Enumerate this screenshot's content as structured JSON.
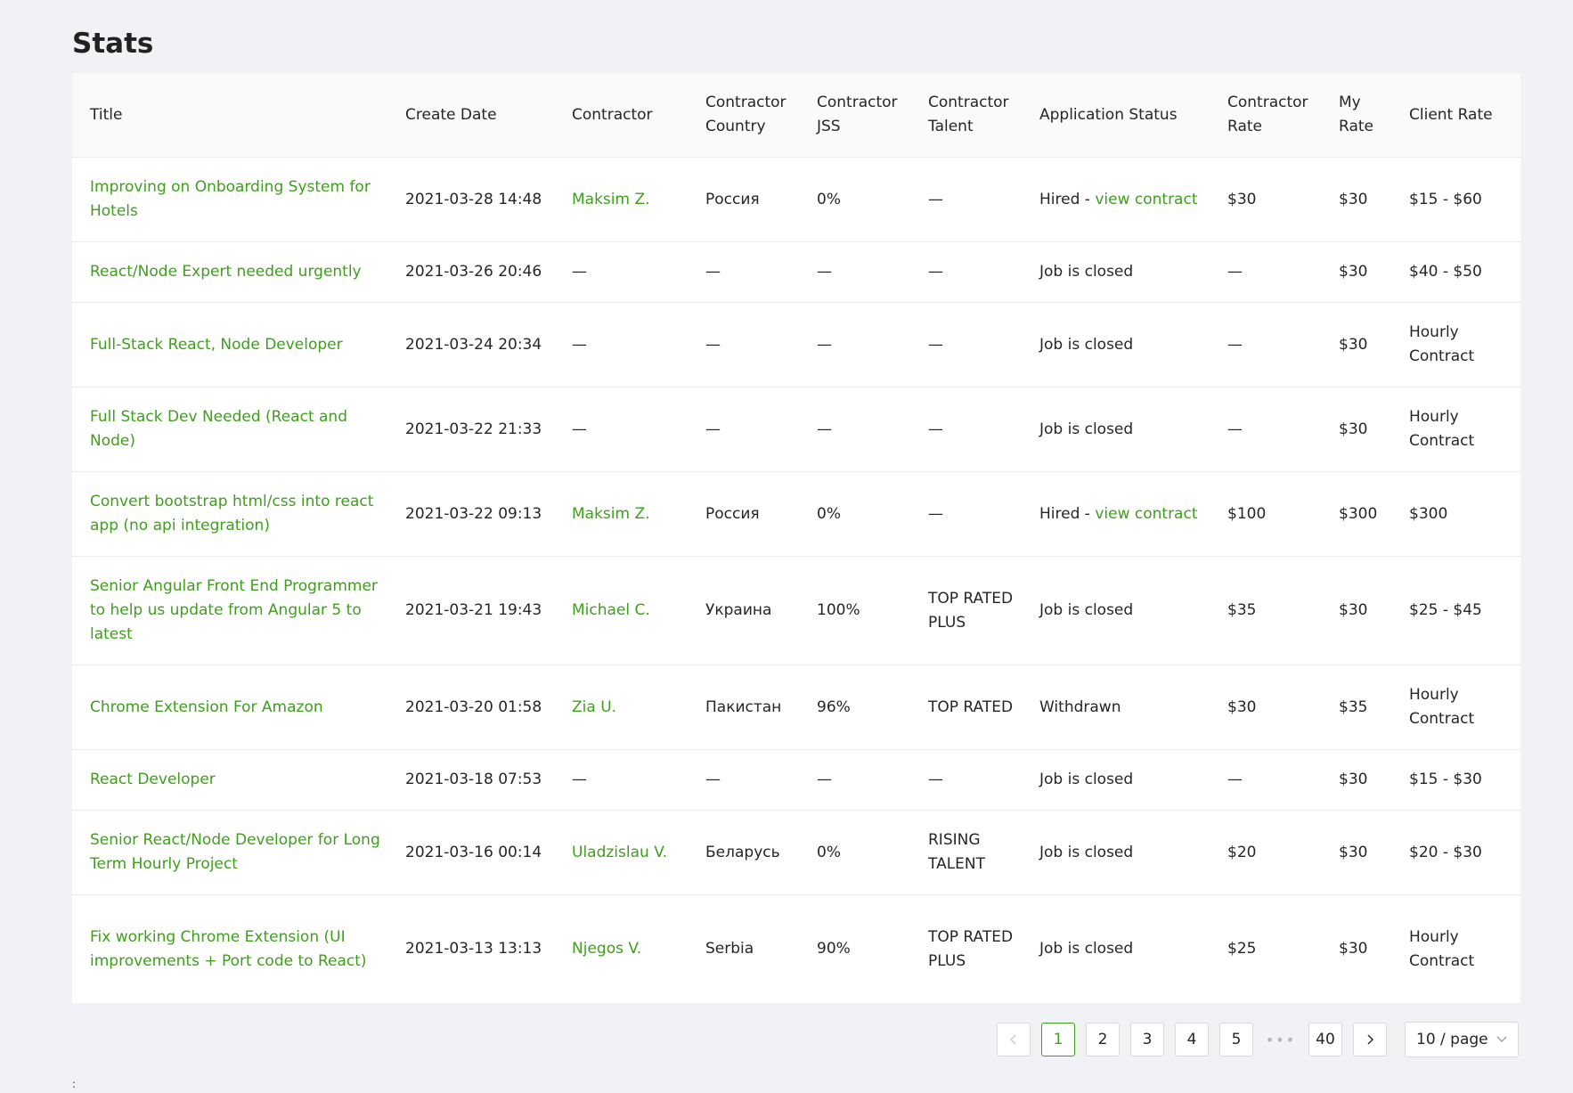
{
  "page": {
    "title": "Stats"
  },
  "table": {
    "columns": [
      "Title",
      "Create Date",
      "Contractor",
      "Contractor Country",
      "Contractor JSS",
      "Contractor Talent",
      "Application Status",
      "Contractor Rate",
      "My Rate",
      "Client Rate"
    ],
    "rows": [
      {
        "title": "Improving on Onboarding System for Hotels",
        "date": "2021-03-28 14:48",
        "contractor": "Maksim Z.",
        "country": "Россия",
        "jss": "0%",
        "talent": "—",
        "status": "Hired",
        "status_link": "view contract",
        "contractor_rate": "$30",
        "my_rate": "$30",
        "client_rate": "$15 - $60"
      },
      {
        "title": "React/Node Expert needed urgently",
        "date": "2021-03-26 20:46",
        "contractor": "—",
        "country": "—",
        "jss": "—",
        "talent": "—",
        "status": "Job is closed",
        "status_link": "",
        "contractor_rate": "—",
        "my_rate": "$30",
        "client_rate": "$40 - $50"
      },
      {
        "title": "Full-Stack React, Node Developer",
        "date": "2021-03-24 20:34",
        "contractor": "—",
        "country": "—",
        "jss": "—",
        "talent": "—",
        "status": "Job is closed",
        "status_link": "",
        "contractor_rate": "—",
        "my_rate": "$30",
        "client_rate": "Hourly Contract"
      },
      {
        "title": "Full Stack Dev Needed (React and Node)",
        "date": "2021-03-22 21:33",
        "contractor": "—",
        "country": "—",
        "jss": "—",
        "talent": "—",
        "status": "Job is closed",
        "status_link": "",
        "contractor_rate": "—",
        "my_rate": "$30",
        "client_rate": "Hourly Contract"
      },
      {
        "title": "Convert bootstrap html/css into react app (no api integration)",
        "date": "2021-03-22 09:13",
        "contractor": "Maksim Z.",
        "country": "Россия",
        "jss": "0%",
        "talent": "—",
        "status": "Hired",
        "status_link": "view contract",
        "contractor_rate": "$100",
        "my_rate": "$300",
        "client_rate": "$300"
      },
      {
        "title": "Senior Angular Front End Programmer to help us update from Angular 5 to latest",
        "date": "2021-03-21 19:43",
        "contractor": "Michael C.",
        "country": "Украина",
        "jss": "100%",
        "talent": "TOP RATED PLUS",
        "status": "Job is closed",
        "status_link": "",
        "contractor_rate": "$35",
        "my_rate": "$30",
        "client_rate": "$25 - $45"
      },
      {
        "title": "Chrome Extension For Amazon",
        "date": "2021-03-20 01:58",
        "contractor": "Zia U.",
        "country": "Пакистан",
        "jss": "96%",
        "talent": "TOP RATED",
        "status": "Withdrawn",
        "status_link": "",
        "contractor_rate": "$30",
        "my_rate": "$35",
        "client_rate": "Hourly Contract"
      },
      {
        "title": "React Developer",
        "date": "2021-03-18 07:53",
        "contractor": "—",
        "country": "—",
        "jss": "—",
        "talent": "—",
        "status": "Job is closed",
        "status_link": "",
        "contractor_rate": "—",
        "my_rate": "$30",
        "client_rate": "$15 - $30"
      },
      {
        "title": "Senior React/Node Developer for Long Term Hourly Project",
        "date": "2021-03-16 00:14",
        "contractor": "Uladzislau V.",
        "country": "Беларусь",
        "jss": "0%",
        "talent": "RISING TALENT",
        "status": "Job is closed",
        "status_link": "",
        "contractor_rate": "$20",
        "my_rate": "$30",
        "client_rate": "$20 - $30"
      },
      {
        "title": "Fix working Chrome Extension (UI improvements + Port code to React)",
        "date": "2021-03-13 13:13",
        "contractor": "Njegos V.",
        "country": "Serbia",
        "jss": "90%",
        "talent": "TOP RATED PLUS",
        "status": "Job is closed",
        "status_link": "",
        "contractor_rate": "$25",
        "my_rate": "$30",
        "client_rate": "Hourly Contract"
      }
    ]
  },
  "pagination": {
    "prev_icon": "chevron-left-icon",
    "next_icon": "chevron-right-icon",
    "pages": [
      "1",
      "2",
      "3",
      "4",
      "5"
    ],
    "ellipsis": "•••",
    "last_page": "40",
    "current": "1",
    "page_size_label": "10 / page"
  },
  "footer": {
    "dots": ":"
  },
  "colors": {
    "link": "#3f9f1d",
    "background": "#f0f2f5",
    "header_bg": "#fafafa"
  }
}
